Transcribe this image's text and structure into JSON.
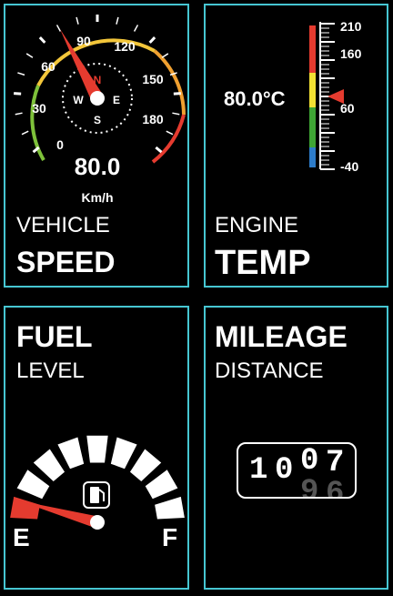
{
  "speed": {
    "label_top": "VEHICLE",
    "label_bottom": "SPEED",
    "value": "80.0",
    "unit": "Km/h",
    "current_kmh": 80,
    "ticks": [
      "0",
      "30",
      "60",
      "90",
      "120",
      "150",
      "180"
    ],
    "compass": {
      "n": "N",
      "s": "S",
      "e": "E",
      "w": "W"
    },
    "colors": {
      "low": "#7ec13a",
      "mid": "#f3c63a",
      "high": "#e53b2f"
    }
  },
  "temp": {
    "label_top": "ENGINE",
    "label_bottom": "TEMP",
    "value": "80.0°C",
    "current_c": 80,
    "ticks": [
      "210",
      "160",
      "60",
      "-40"
    ],
    "scale_colors": [
      "#e53b2f",
      "#f2e133",
      "#3fa535",
      "#2d7cc9"
    ]
  },
  "fuel": {
    "label_top": "FUEL",
    "label_bottom": "LEVEL",
    "empty": "E",
    "full": "F",
    "level_fraction": 0.05,
    "segment_count": 9
  },
  "mileage": {
    "label_top": "MILEAGE",
    "label_bottom": "DISTANCE",
    "digits": [
      "1",
      "0",
      "0",
      "7"
    ],
    "rolling_digits": [
      "9",
      "6"
    ]
  },
  "palette": {
    "border": "#46c6d2",
    "needle": "#e53b2f"
  }
}
